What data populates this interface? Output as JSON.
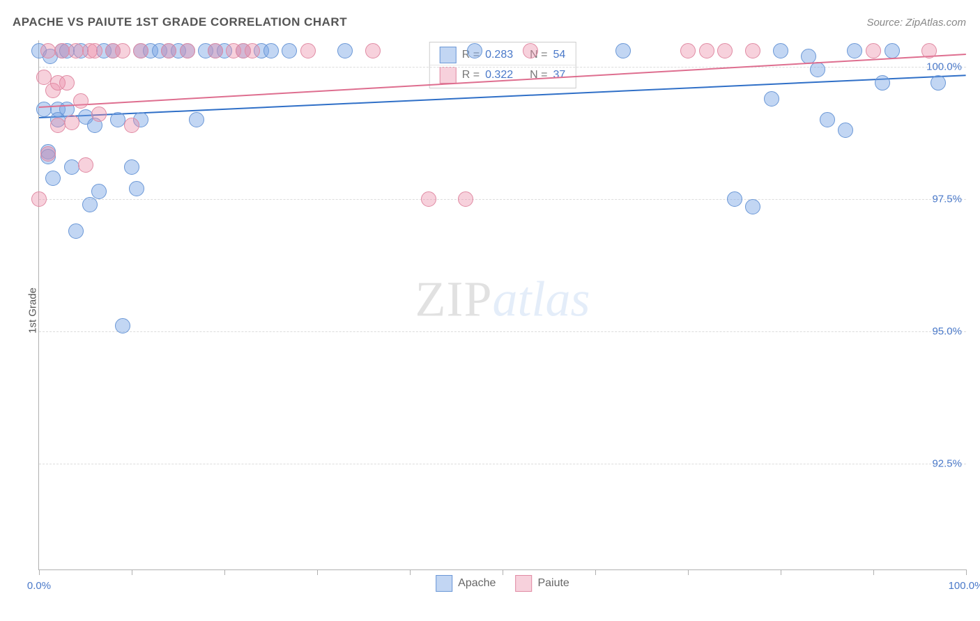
{
  "title": "APACHE VS PAIUTE 1ST GRADE CORRELATION CHART",
  "source_label": "Source: ZipAtlas.com",
  "ylabel": "1st Grade",
  "watermark_part1": "ZIP",
  "watermark_part2": "atlas",
  "chart": {
    "type": "scatter",
    "background_color": "#ffffff",
    "grid_color": "#dcdcdc",
    "axis_color": "#b0b0b0",
    "tick_label_color": "#4a79c9",
    "xlim": [
      0,
      100
    ],
    "ylim": [
      90.5,
      100.5
    ],
    "y_ticks": [
      {
        "v": 100.0,
        "label": "100.0%"
      },
      {
        "v": 97.5,
        "label": "97.5%"
      },
      {
        "v": 95.0,
        "label": "95.0%"
      },
      {
        "v": 92.5,
        "label": "92.5%"
      }
    ],
    "x_tick_marks": [
      0,
      10,
      20,
      30,
      40,
      50,
      60,
      70,
      80,
      90,
      100
    ],
    "x_tick_labels": [
      {
        "v": 0,
        "label": "0.0%"
      },
      {
        "v": 100,
        "label": "100.0%"
      }
    ],
    "point_radius": 10,
    "series": [
      {
        "name": "Apache",
        "fill": "rgba(120,165,228,0.45)",
        "stroke": "#6a97d6",
        "trend_color": "#2f6fc7",
        "R": "0.283",
        "N": "54",
        "trend": {
          "x1": 0,
          "y1": 99.05,
          "x2": 100,
          "y2": 99.85
        },
        "points": [
          [
            0,
            100.3
          ],
          [
            0.5,
            99.2
          ],
          [
            1,
            98.4
          ],
          [
            1,
            98.3
          ],
          [
            1.2,
            100.2
          ],
          [
            1.5,
            97.9
          ],
          [
            2,
            99.2
          ],
          [
            2,
            99.0
          ],
          [
            2.5,
            100.3
          ],
          [
            3,
            99.2
          ],
          [
            3,
            100.3
          ],
          [
            3.5,
            98.1
          ],
          [
            4,
            96.9
          ],
          [
            4.5,
            100.3
          ],
          [
            5,
            99.05
          ],
          [
            5.5,
            97.4
          ],
          [
            6,
            98.9
          ],
          [
            6.5,
            97.65
          ],
          [
            7,
            100.3
          ],
          [
            8,
            100.3
          ],
          [
            8.5,
            99.0
          ],
          [
            9,
            95.1
          ],
          [
            10,
            98.1
          ],
          [
            10.5,
            97.7
          ],
          [
            11,
            100.3
          ],
          [
            11,
            99.0
          ],
          [
            12,
            100.3
          ],
          [
            13,
            100.3
          ],
          [
            14,
            100.3
          ],
          [
            15,
            100.3
          ],
          [
            16,
            100.3
          ],
          [
            17,
            99.0
          ],
          [
            18,
            100.3
          ],
          [
            19,
            100.3
          ],
          [
            20,
            100.3
          ],
          [
            22,
            100.3
          ],
          [
            24,
            100.3
          ],
          [
            25,
            100.3
          ],
          [
            27,
            100.3
          ],
          [
            33,
            100.3
          ],
          [
            47,
            100.3
          ],
          [
            63,
            100.3
          ],
          [
            75,
            97.5
          ],
          [
            77,
            97.35
          ],
          [
            79,
            99.4
          ],
          [
            80,
            100.3
          ],
          [
            83,
            100.2
          ],
          [
            84,
            99.95
          ],
          [
            85,
            99.0
          ],
          [
            87,
            98.8
          ],
          [
            88,
            100.3
          ],
          [
            91,
            99.7
          ],
          [
            92,
            100.3
          ],
          [
            97,
            99.7
          ]
        ]
      },
      {
        "name": "Paiute",
        "fill": "rgba(236,140,168,0.40)",
        "stroke": "#e08aa3",
        "trend_color": "#de6e8f",
        "R": "0.322",
        "N": "37",
        "trend": {
          "x1": 0,
          "y1": 99.25,
          "x2": 100,
          "y2": 100.25
        },
        "points": [
          [
            0,
            97.5
          ],
          [
            0.5,
            99.8
          ],
          [
            1,
            98.35
          ],
          [
            1,
            100.3
          ],
          [
            1.5,
            99.55
          ],
          [
            2,
            98.9
          ],
          [
            2,
            99.7
          ],
          [
            2.5,
            100.3
          ],
          [
            3,
            99.7
          ],
          [
            3.5,
            98.95
          ],
          [
            4,
            100.3
          ],
          [
            4.5,
            99.35
          ],
          [
            5,
            98.15
          ],
          [
            5.5,
            100.3
          ],
          [
            6,
            100.3
          ],
          [
            6.5,
            99.1
          ],
          [
            8,
            100.3
          ],
          [
            9,
            100.3
          ],
          [
            10,
            98.9
          ],
          [
            11,
            100.3
          ],
          [
            14,
            100.3
          ],
          [
            16,
            100.3
          ],
          [
            19,
            100.3
          ],
          [
            21,
            100.3
          ],
          [
            22,
            100.3
          ],
          [
            23,
            100.3
          ],
          [
            29,
            100.3
          ],
          [
            36,
            100.3
          ],
          [
            42,
            97.5
          ],
          [
            46,
            97.5
          ],
          [
            53,
            100.3
          ],
          [
            70,
            100.3
          ],
          [
            72,
            100.3
          ],
          [
            74,
            100.3
          ],
          [
            77,
            100.3
          ],
          [
            90,
            100.3
          ],
          [
            96,
            100.3
          ]
        ]
      }
    ],
    "stats_box": {
      "border_color": "#cccccc",
      "label_color": "#777777",
      "value_color": "#4a79c9"
    },
    "bottom_legend": {
      "apache": "Apache",
      "paiute": "Paiute"
    }
  }
}
